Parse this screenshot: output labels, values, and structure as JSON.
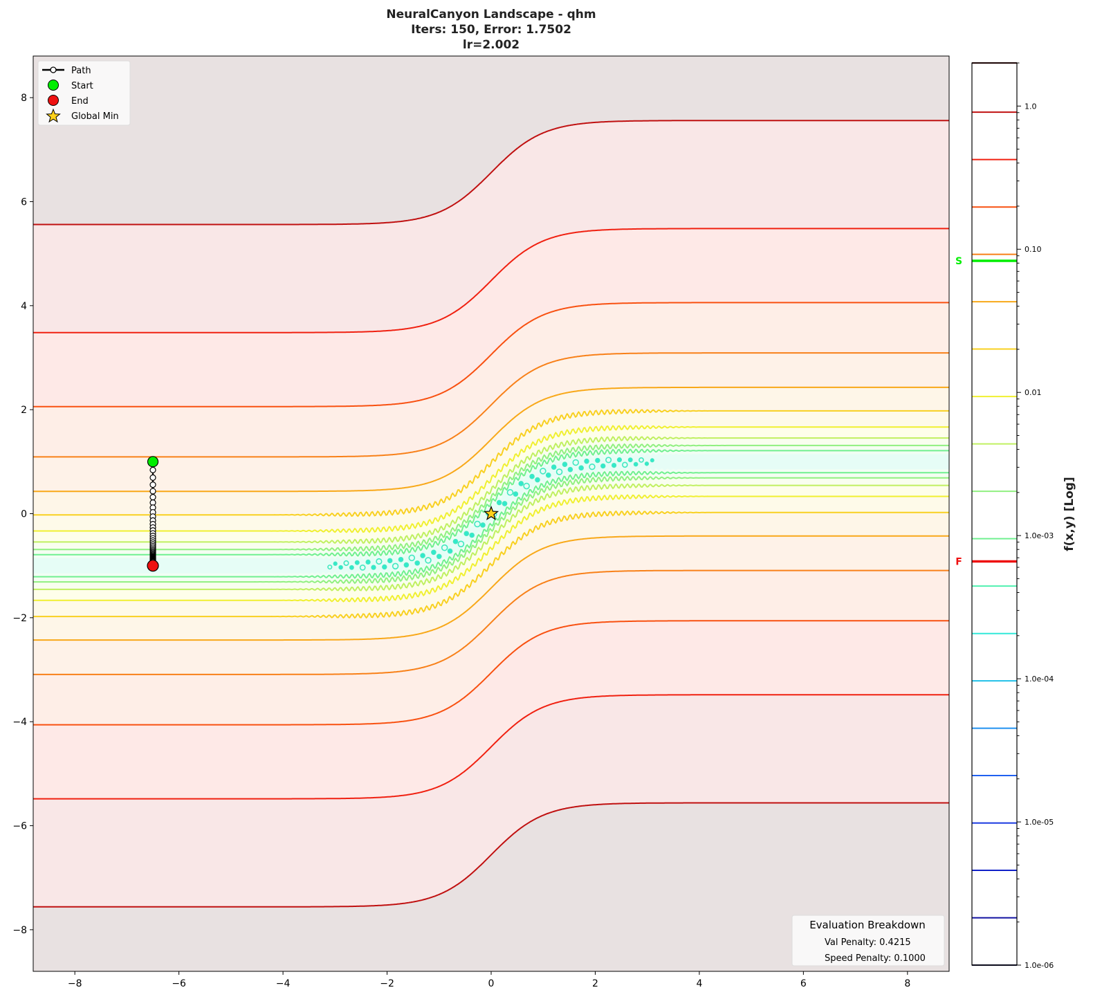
{
  "chart_data": {
    "type": "contour",
    "title_lines": [
      "NeuralCanyon Landscape - qhm",
      "Iters: 150, Error: 1.7502",
      "lr=2.002"
    ],
    "xlim": [
      -8.8,
      8.8
    ],
    "ylim": [
      -8.8,
      8.8
    ],
    "x_ticks": [
      -8,
      -6,
      -4,
      -2,
      0,
      2,
      4,
      6,
      8
    ],
    "x_tick_labels": [
      "−8",
      "−6",
      "−4",
      "−2",
      "0",
      "2",
      "4",
      "6",
      "8"
    ],
    "y_ticks": [
      -8,
      -6,
      -4,
      -2,
      0,
      2,
      4,
      6,
      8
    ],
    "y_tick_labels": [
      "−8",
      "−6",
      "−4",
      "−2",
      "0",
      "2",
      "4",
      "6",
      "8"
    ],
    "grid": false,
    "contour_levels": [
      1e-06,
      2.14e-06,
      4.59e-06,
      9.83e-06,
      2.11e-05,
      4.51e-05,
      9.67e-05,
      0.000207,
      0.000444,
      0.000951,
      0.00204,
      0.00437,
      0.00936,
      0.0201,
      0.043,
      0.0921,
      0.197,
      0.423,
      0.906,
      2.0
    ],
    "contour_colors": [
      "#1a1a40",
      "#1010a0",
      "#1020c8",
      "#1838e0",
      "#2060f0",
      "#2090f0",
      "#20c0e8",
      "#30e8d8",
      "#50f0b0",
      "#70f090",
      "#90f080",
      "#c0f060",
      "#f0f030",
      "#f8d020",
      "#f8a818",
      "#f88018",
      "#f85010",
      "#f02010",
      "#c01010",
      "#400808"
    ],
    "colorbar": {
      "label": "f(x,y) [Log]",
      "scale": "log",
      "range": [
        1e-06,
        2.0
      ],
      "ticks": [
        1.0,
        0.1,
        0.01,
        0.001,
        0.0001,
        1e-05,
        1e-06
      ],
      "tick_labels": [
        "1.0",
        "0.10",
        "0.01",
        "1.0e-03",
        "1.0e-04",
        "1.0e-05",
        "1.0e-06"
      ],
      "markers": [
        {
          "label": "S",
          "value": 0.083,
          "color": "#00ee00"
        },
        {
          "label": "F",
          "value": 0.00066,
          "color": "#ee1111"
        }
      ]
    },
    "path": {
      "x": [
        -6.5,
        -6.5,
        -6.5,
        -6.5,
        -6.5,
        -6.5,
        -6.5,
        -6.5,
        -6.5,
        -6.5,
        -6.5,
        -6.5,
        -6.5,
        -6.5,
        -6.5,
        -6.5,
        -6.5,
        -6.5,
        -6.5,
        -6.5,
        -6.5,
        -6.5,
        -6.5,
        -6.5,
        -6.5,
        -6.5,
        -6.5,
        -6.5,
        -6.5,
        -6.5,
        -6.5,
        -6.5,
        -6.5,
        -6.5,
        -6.5,
        -6.5,
        -6.5,
        -6.5,
        -6.5,
        -6.5,
        -6.5,
        -6.5
      ],
      "y": [
        1.0,
        0.84,
        0.693,
        0.557,
        0.433,
        0.318,
        0.213,
        0.116,
        0.026,
        -0.056,
        -0.131,
        -0.201,
        -0.265,
        -0.323,
        -0.378,
        -0.427,
        -0.473,
        -0.515,
        -0.554,
        -0.59,
        -0.623,
        -0.653,
        -0.681,
        -0.706,
        -0.73,
        -0.751,
        -0.771,
        -0.789,
        -0.806,
        -0.822,
        -0.836,
        -0.849,
        -0.861,
        -0.872,
        -0.883,
        -0.892,
        -0.901,
        -0.909,
        -0.916,
        -0.923,
        -0.929,
        -1.0
      ]
    },
    "start": {
      "x": -6.5,
      "y": 1.0,
      "color": "#00ee00"
    },
    "end": {
      "x": -6.5,
      "y": -1.0,
      "color": "#ee1111"
    },
    "global_min": {
      "x": 0,
      "y": 0,
      "color": "#ffd21a"
    },
    "legend": {
      "placement": "top-left",
      "entries": [
        "Path",
        "Start",
        "End",
        "Global Min"
      ]
    },
    "evaluation": {
      "title": "Evaluation Breakdown",
      "lines": [
        "Val Penalty: 0.4215",
        "Speed Penalty: 0.1000"
      ]
    }
  }
}
